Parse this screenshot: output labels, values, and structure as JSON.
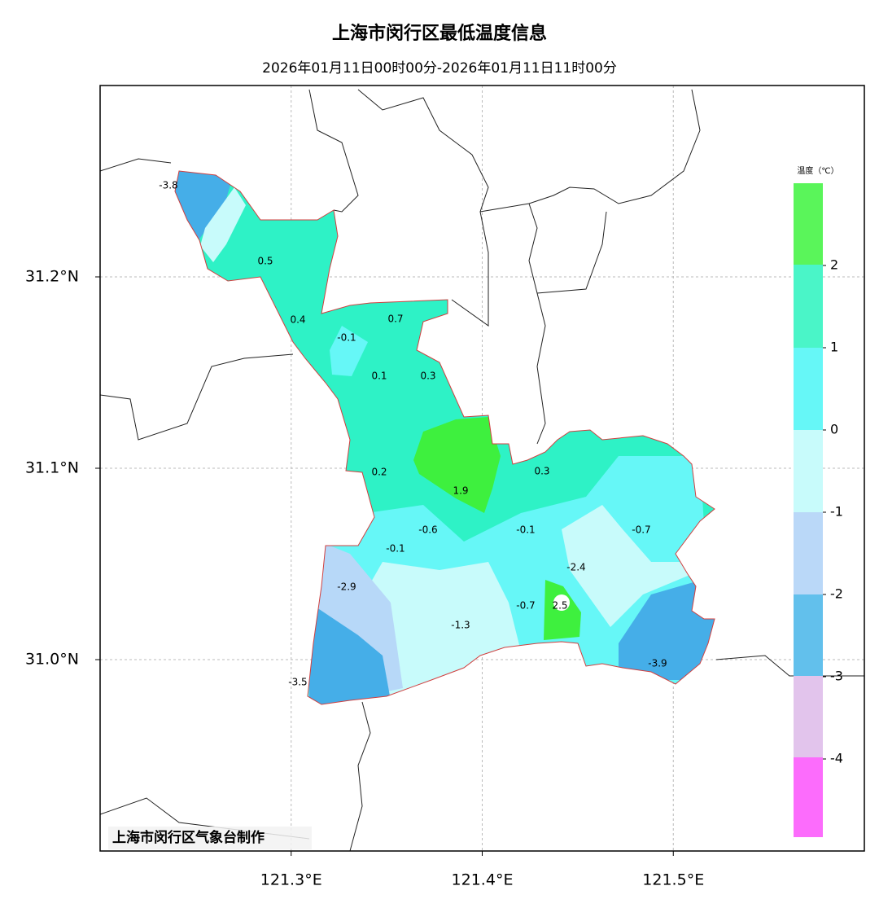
{
  "header": {
    "title": "上海市闵行区最低温度信息",
    "subtitle": "2026年01月11日00时00分-2026年01月11日11时00分"
  },
  "map": {
    "xlim": [
      121.2,
      121.6
    ],
    "ylim": [
      30.9,
      31.3
    ],
    "lon_ticks": [
      {
        "value": 121.3,
        "label": "121.3°E"
      },
      {
        "value": 121.4,
        "label": "121.4°E"
      },
      {
        "value": 121.5,
        "label": "121.5°E"
      }
    ],
    "lat_ticks": [
      {
        "value": 31.0,
        "label": "31.0°N"
      },
      {
        "value": 31.1,
        "label": "31.1°N"
      },
      {
        "value": 31.2,
        "label": "31.2°N"
      }
    ],
    "stations": [
      -3.8,
      0.5,
      0.4,
      0.7,
      -0.1,
      0.1,
      0.3,
      1.9,
      0.2,
      0.3,
      -0.6,
      -0.1,
      -0.1,
      -0.7,
      -2.4,
      -2.9,
      -0.7,
      2.5,
      -1.3,
      -3.5,
      -3.9
    ],
    "credit": "上海市闵行区气象台制作"
  },
  "legend": {
    "title": "温度（℃）",
    "ticks": [
      2,
      1,
      0,
      -1,
      -2,
      -3,
      -4
    ]
  }
}
